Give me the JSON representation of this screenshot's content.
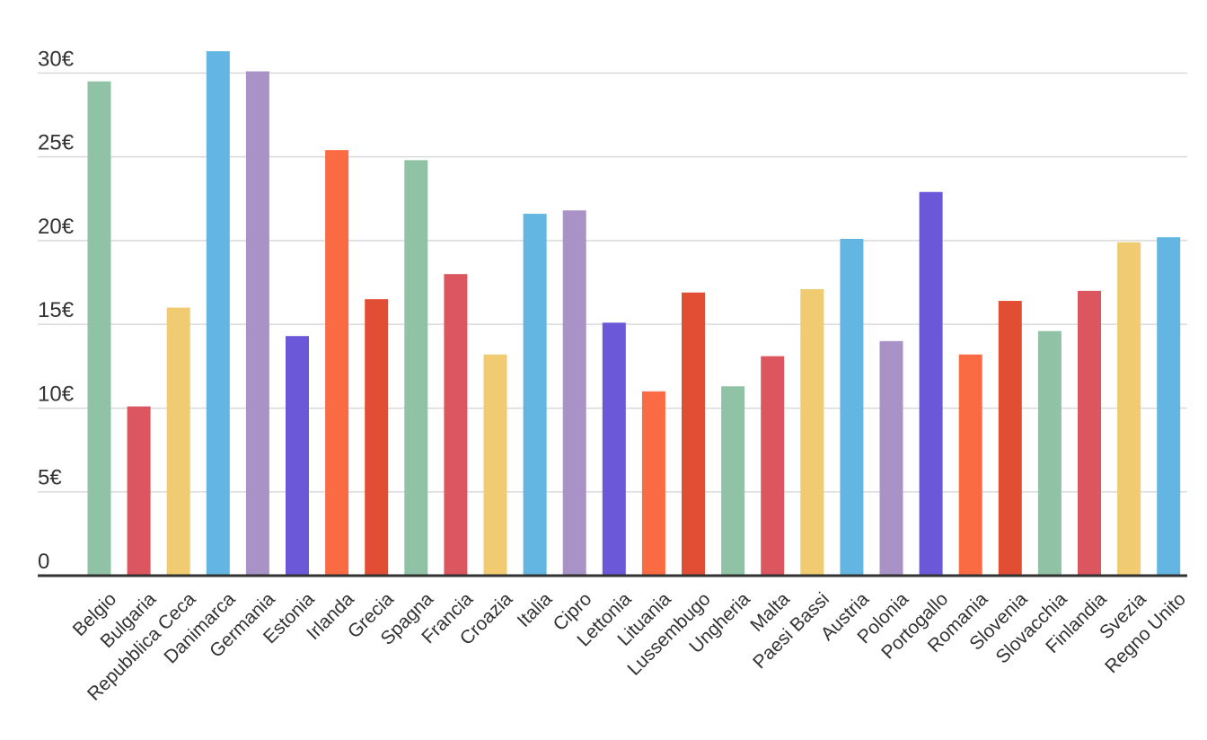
{
  "chart_data": {
    "type": "bar",
    "categories": [
      "Belgio",
      "Bulgaria",
      "Repubblica Ceca",
      "Danimarca",
      "Germania",
      "Estonia",
      "Irlanda",
      "Grecia",
      "Spagna",
      "Francia",
      "Croazia",
      "Italia",
      "Cipro",
      "Lettonia",
      "Lituania",
      "Lussembugo",
      "Ungheria",
      "Malta",
      "Paesi Bassi",
      "Austria",
      "Polonia",
      "Portogallo",
      "Romania",
      "Slovenia",
      "Slovacchia",
      "Finlandia",
      "Svezia",
      "Regno Unito"
    ],
    "values": [
      29.5,
      10.1,
      16.0,
      31.3,
      30.1,
      14.3,
      25.4,
      16.5,
      24.8,
      18.0,
      13.2,
      21.6,
      21.8,
      15.1,
      11.0,
      16.9,
      11.3,
      13.1,
      17.1,
      20.1,
      14.0,
      22.9,
      13.2,
      16.4,
      14.6,
      17.0,
      19.9,
      20.2
    ],
    "colors": [
      "#90c3a6",
      "#dc565f",
      "#f0cb72",
      "#62b6e1",
      "#a993c6",
      "#6b58d9",
      "#fb6b43",
      "#e24e33",
      "#90c3a6",
      "#dc565f",
      "#f0cb72",
      "#62b6e1",
      "#a993c6",
      "#6b58d9",
      "#fb6b43",
      "#e24e33",
      "#90c3a6",
      "#dc565f",
      "#f0cb72",
      "#62b6e1",
      "#a993c6",
      "#6b58d9",
      "#fb6b43",
      "#e24e33",
      "#90c3a6",
      "#dc565f",
      "#f0cb72",
      "#62b6e1"
    ],
    "yticks": [
      0,
      5,
      10,
      15,
      20,
      25,
      30
    ],
    "ytick_labels": [
      "0",
      "5€",
      "10€",
      "15€",
      "20€",
      "25€",
      "30€"
    ],
    "ylim": [
      0,
      32
    ],
    "grid": true,
    "legend": "none",
    "title": "",
    "xlabel": "",
    "ylabel": ""
  }
}
